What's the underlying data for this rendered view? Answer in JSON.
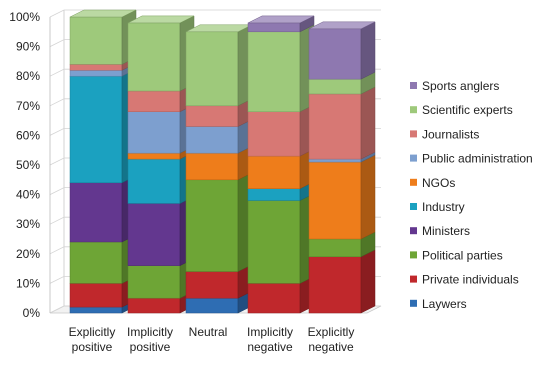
{
  "chart_data": {
    "type": "bar",
    "stacked": true,
    "style": "3d-stacked-percent",
    "categories": [
      [
        "Explicitly",
        "positive"
      ],
      [
        "Implicitly",
        "positive"
      ],
      [
        "Neutral"
      ],
      [
        "Implicitly",
        "negative"
      ],
      [
        "Explicitly",
        "negative"
      ]
    ],
    "ylim": [
      0,
      100
    ],
    "yticks": [
      "0%",
      "10%",
      "20%",
      "30%",
      "40%",
      "50%",
      "60%",
      "70%",
      "80%",
      "90%",
      "100%"
    ],
    "legend_position": "right",
    "series": [
      {
        "name": "Laywers",
        "color": "#2e6db3",
        "values": [
          2,
          0,
          5,
          0,
          0
        ]
      },
      {
        "name": "Private individuals",
        "color": "#c0282c",
        "values": [
          8,
          5,
          9,
          10,
          19
        ]
      },
      {
        "name": "Political parties",
        "color": "#6ea536",
        "values": [
          14,
          11,
          31,
          28,
          6
        ]
      },
      {
        "name": "Ministers",
        "color": "#63378f",
        "values": [
          20,
          21,
          0,
          0,
          0
        ]
      },
      {
        "name": "Industry",
        "color": "#1ba1c0",
        "values": [
          36,
          15,
          0,
          4,
          0
        ]
      },
      {
        "name": "NGOs",
        "color": "#ee7d1b",
        "values": [
          0,
          2,
          9,
          11,
          26
        ]
      },
      {
        "name": "Public administration",
        "color": "#7d9fcf",
        "values": [
          2,
          14,
          9,
          0,
          1
        ]
      },
      {
        "name": "Journalists",
        "color": "#d77874",
        "values": [
          2,
          7,
          7,
          15,
          22
        ]
      },
      {
        "name": "Scientific experts",
        "color": "#9ec97b",
        "values": [
          16,
          23,
          25,
          27,
          5
        ]
      },
      {
        "name": "Sports anglers",
        "color": "#8e78b0",
        "values": [
          0,
          0,
          0,
          3,
          17
        ]
      }
    ]
  }
}
